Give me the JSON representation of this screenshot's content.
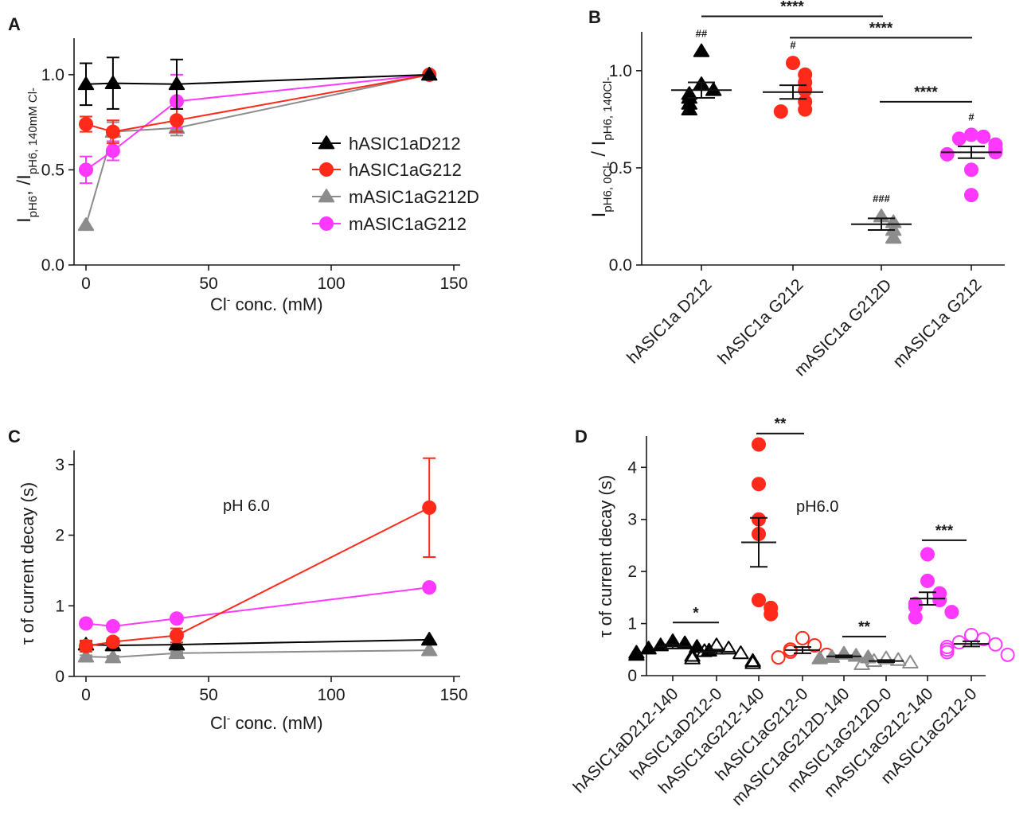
{
  "colors": {
    "black": "#000000",
    "red": "#ff2a1a",
    "gray": "#8c8c8c",
    "magenta": "#ff38ff"
  },
  "chart_data": [
    {
      "panel": "A",
      "type": "line",
      "xlabel": "Cl- conc. (mM)",
      "xlabel_main": "Cl",
      "xlabel_sup": "-",
      "xlabel_rest": " conc. (mM)",
      "ylabel": "IpH6, /IpH6, 140mM Cl-",
      "ylabel_parts": {
        "I1": "I",
        "sub1": "pH6",
        "mid": ", /I",
        "sub2": "pH6, 140mM Cl-"
      },
      "xlim": [
        -5,
        150
      ],
      "ylim": [
        0,
        1.2
      ],
      "xticks": [
        0,
        50,
        100,
        150
      ],
      "yticks": [
        0.0,
        0.5,
        1.0
      ],
      "ytick_labels": [
        "0.0",
        "0.5",
        "1.0"
      ],
      "legend_position": "right-middle",
      "x": [
        0,
        11,
        37,
        140
      ],
      "series": [
        {
          "name": "hASIC1aD212",
          "color": "black",
          "marker": "triangle",
          "values": [
            0.95,
            0.955,
            0.95,
            1.0
          ],
          "errors": [
            0.11,
            0.135,
            0.13,
            0.0
          ]
        },
        {
          "name": "hASIC1aG212",
          "color": "red",
          "marker": "circle",
          "values": [
            0.74,
            0.7,
            0.76,
            1.0
          ],
          "errors": [
            0.04,
            0.06,
            0.06,
            0.0
          ]
        },
        {
          "name": "mASIC1aG212D",
          "color": "gray",
          "marker": "triangle",
          "values": [
            0.21,
            0.7,
            0.72,
            1.0
          ],
          "errors": [
            0.0,
            0.05,
            0.04,
            0.0
          ]
        },
        {
          "name": "mASIC1aG212",
          "color": "magenta",
          "marker": "circle",
          "values": [
            0.5,
            0.6,
            0.86,
            1.0
          ],
          "errors": [
            0.07,
            0.05,
            0.14,
            0.0
          ]
        }
      ]
    },
    {
      "panel": "B",
      "type": "scatter",
      "ylabel": "IpH6, 0Cl- / IpH6, 140Cl-",
      "ylabel_parts": {
        "I1": "I",
        "sub1": "pH6, 0Cl-",
        "mid": " / I",
        "sub2": "pH6, 140Cl-"
      },
      "ylim": [
        0,
        1.2
      ],
      "yticks": [
        0.0,
        0.5,
        1.0
      ],
      "ytick_labels": [
        "0.0",
        "0.5",
        "1.0"
      ],
      "categories": [
        "hASIC1a D212",
        "hASIC1a G212",
        "mASIC1a G212D",
        "mASIC1a G212"
      ],
      "groups": [
        {
          "color": "black",
          "marker": "triangle",
          "points": [
            1.1,
            0.93,
            0.9,
            0.88,
            0.86,
            0.83,
            0.8
          ],
          "mean": 0.9,
          "sem": 0.04,
          "hash": "##"
        },
        {
          "color": "red",
          "marker": "circle",
          "points": [
            1.04,
            0.98,
            0.94,
            0.9,
            0.84,
            0.8,
            0.79
          ],
          "mean": 0.89,
          "sem": 0.035,
          "hash": "#"
        },
        {
          "color": "gray",
          "marker": "triangle",
          "points": [
            0.25,
            0.22,
            0.18,
            0.14
          ],
          "mean": 0.21,
          "sem": 0.03,
          "hash": "###"
        },
        {
          "color": "magenta",
          "marker": "circle",
          "points": [
            0.67,
            0.66,
            0.65,
            0.62,
            0.6,
            0.59,
            0.58,
            0.57,
            0.49,
            0.36
          ],
          "mean": 0.58,
          "sem": 0.03,
          "hash": "#"
        }
      ],
      "significance": [
        {
          "from": 0,
          "to": 2,
          "level": 1.28,
          "label": "****"
        },
        {
          "from": 1,
          "to": 3,
          "level": 1.17,
          "label": "****"
        },
        {
          "from": 2,
          "to": 3,
          "level": 0.84,
          "label": "****"
        }
      ]
    },
    {
      "panel": "C",
      "type": "line",
      "xlabel": "Cl- conc. (mM)",
      "xlabel_main": "Cl",
      "xlabel_sup": "-",
      "xlabel_rest": " conc. (mM)",
      "ylabel": "τ of  current decay (s)",
      "annotation": "pH 6.0",
      "xlim": [
        -5,
        150
      ],
      "ylim": [
        0,
        3.2
      ],
      "xticks": [
        0,
        50,
        100,
        150
      ],
      "yticks": [
        0,
        1,
        2,
        3
      ],
      "x": [
        0,
        11,
        37,
        140
      ],
      "series": [
        {
          "name": "hASIC1aD212",
          "color": "black",
          "marker": "triangle",
          "values": [
            0.45,
            0.44,
            0.45,
            0.52
          ],
          "errors": [
            0.05,
            0.03,
            0.03,
            0.0
          ]
        },
        {
          "name": "hASIC1aG212",
          "color": "red",
          "marker": "circle",
          "values": [
            0.43,
            0.49,
            0.58,
            2.39
          ],
          "errors": [
            0.08,
            0.05,
            0.1,
            0.7
          ]
        },
        {
          "name": "mASIC1aG212D",
          "color": "gray",
          "marker": "triangle",
          "values": [
            0.28,
            0.27,
            0.33,
            0.37
          ],
          "errors": [
            0.02,
            0.02,
            0.02,
            0.0
          ]
        },
        {
          "name": "mASIC1aG212",
          "color": "magenta",
          "marker": "circle",
          "values": [
            0.75,
            0.71,
            0.82,
            1.26
          ],
          "errors": [
            0.0,
            0.0,
            0.0,
            0.0
          ]
        }
      ]
    },
    {
      "panel": "D",
      "type": "scatter",
      "ylabel": "τ of current decay (s)",
      "annotation": "pH6.0",
      "ylim": [
        0,
        4.6
      ],
      "yticks": [
        0,
        1,
        2,
        3,
        4
      ],
      "categories": [
        "hASIC1aD212-140",
        "hASIC1aD212-0",
        "hASIC1aG212-140",
        "hASIC1aG212-0",
        "mASIC1aG212D-140",
        "mASIC1aG212D-0",
        "mASIC1aG212-140",
        "mASIC1aG212-0"
      ],
      "groups": [
        {
          "color": "black",
          "marker": "triangle",
          "filled": true,
          "points": [
            0.66,
            0.62,
            0.58,
            0.55,
            0.52,
            0.48,
            0.44,
            0.4
          ],
          "mean": 0.56,
          "sem": 0.04
        },
        {
          "color": "black",
          "marker": "triangle",
          "filled": false,
          "points": [
            0.58,
            0.52,
            0.47,
            0.43,
            0.38,
            0.33,
            0.28,
            0.24
          ],
          "mean": 0.46,
          "sem": 0.04
        },
        {
          "color": "red",
          "marker": "circle",
          "filled": true,
          "points": [
            4.44,
            3.68,
            3.0,
            2.72,
            1.45,
            1.3,
            1.18
          ],
          "mean": 2.56,
          "sem": 0.47
        },
        {
          "color": "red",
          "marker": "circle",
          "filled": false,
          "points": [
            0.72,
            0.58,
            0.5,
            0.46,
            0.4,
            0.35
          ],
          "mean": 0.49,
          "sem": 0.06
        },
        {
          "color": "gray",
          "marker": "triangle",
          "filled": true,
          "points": [
            0.42,
            0.38,
            0.36,
            0.35,
            0.33
          ],
          "mean": 0.37,
          "sem": 0.02
        },
        {
          "color": "gray",
          "marker": "triangle",
          "filled": false,
          "points": [
            0.33,
            0.3,
            0.28,
            0.25,
            0.22
          ],
          "mean": 0.28,
          "sem": 0.02
        },
        {
          "color": "magenta",
          "marker": "circle",
          "filled": true,
          "points": [
            2.33,
            1.82,
            1.58,
            1.45,
            1.38,
            1.32,
            1.22,
            1.12
          ],
          "mean": 1.48,
          "sem": 0.12
        },
        {
          "color": "magenta",
          "marker": "circle",
          "filled": false,
          "points": [
            0.78,
            0.7,
            0.64,
            0.6,
            0.55,
            0.5,
            0.45,
            0.4
          ],
          "mean": 0.61,
          "sem": 0.05
        }
      ],
      "significance": [
        {
          "from": 0,
          "to": 1,
          "level": 1.02,
          "label": "*"
        },
        {
          "from": 2,
          "to": 3,
          "level": 4.65,
          "label": "**"
        },
        {
          "from": 4,
          "to": 5,
          "level": 0.75,
          "label": "**"
        },
        {
          "from": 6,
          "to": 7,
          "level": 2.6,
          "label": "***"
        }
      ]
    }
  ]
}
